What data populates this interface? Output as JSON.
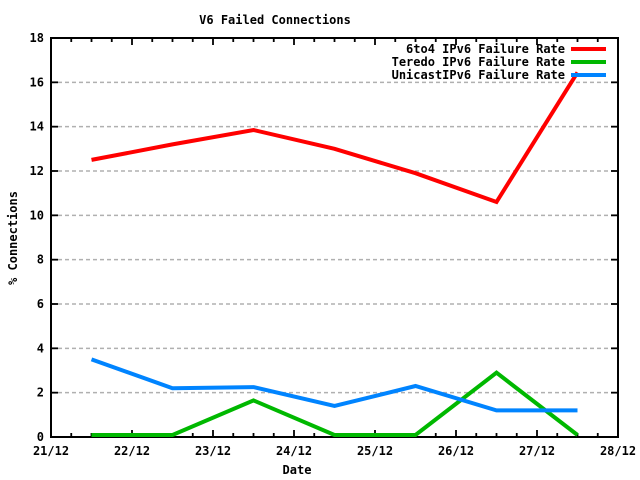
{
  "chart_data": {
    "type": "line",
    "title": "V6 Failed Connections",
    "xlabel": "Date",
    "ylabel": "% Connections",
    "xlim": [
      21,
      28
    ],
    "ylim": [
      0,
      18
    ],
    "y_tick_interval": 2,
    "x_minor_tick_interval": 0.25,
    "x_tick_values": [
      21,
      22,
      23,
      24,
      25,
      26,
      27,
      28
    ],
    "x_tick_labels": [
      "21/12",
      "22/12",
      "23/12",
      "24/12",
      "25/12",
      "26/12",
      "27/12",
      "28/12"
    ],
    "grid": {
      "horizontal": true,
      "vertical": false,
      "style": "dashed",
      "color": "#b0b0b0"
    },
    "legend": {
      "position": "top-right-inside"
    },
    "x": [
      21.5,
      22.5,
      23.5,
      24.5,
      25.5,
      26.5,
      27.5
    ],
    "series": [
      {
        "name": "6to4 IPv6 Failure Rate",
        "color": "#ff0000",
        "values": [
          12.5,
          13.2,
          13.85,
          13.0,
          11.9,
          10.6,
          16.45
        ]
      },
      {
        "name": "Teredo IPv6 Failure Rate",
        "color": "#00b800",
        "values": [
          0,
          0,
          1.65,
          0,
          0,
          2.9,
          0
        ]
      },
      {
        "name": "UnicastIPv6 Failure Rate",
        "color": "#0084ff",
        "values": [
          3.5,
          2.2,
          2.25,
          1.4,
          2.3,
          1.2,
          1.2
        ]
      }
    ]
  }
}
